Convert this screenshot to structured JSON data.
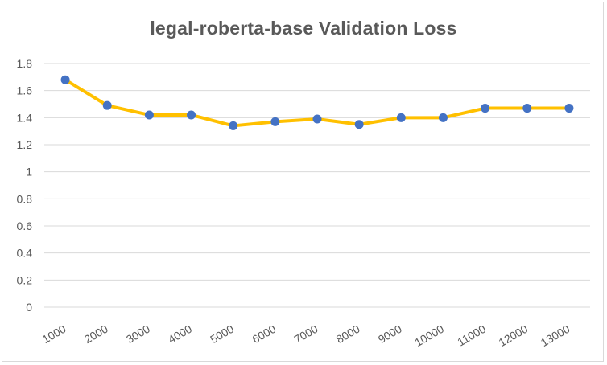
{
  "chart_data": {
    "type": "line",
    "title": "legal-roberta-base Validation Loss",
    "xlabel": "",
    "ylabel": "",
    "categories": [
      "1000",
      "2000",
      "3000",
      "4000",
      "5000",
      "6000",
      "7000",
      "8000",
      "9000",
      "10000",
      "11000",
      "12000",
      "13000"
    ],
    "series": [
      {
        "values": [
          1.68,
          1.49,
          1.42,
          1.42,
          1.34,
          1.37,
          1.39,
          1.35,
          1.4,
          1.4,
          1.47,
          1.47,
          1.47
        ]
      }
    ],
    "ylim": [
      0,
      1.8
    ],
    "yticks": [
      "0",
      "0.2",
      "0.4",
      "0.6",
      "0.8",
      "1",
      "1.2",
      "1.4",
      "1.6",
      "1.8"
    ],
    "grid": "horizontal",
    "legend": "none",
    "colors": {
      "line": "#FFC000",
      "marker": "#4472C4",
      "gridline": "#d9d9d9",
      "text": "#595959"
    }
  }
}
